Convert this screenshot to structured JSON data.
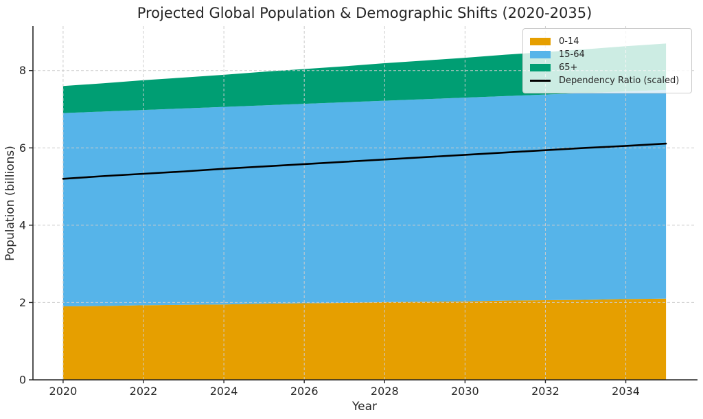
{
  "chart": {
    "title": "Projected Global Population & Demographic Shifts (2020-2035)",
    "xlabel": "Year",
    "ylabel": "Population (billions)"
  },
  "chart_data": {
    "type": "area",
    "stacked": true,
    "title": "Projected Global Population & Demographic Shifts (2020-2035)",
    "xlabel": "Year",
    "ylabel": "Population (billions)",
    "x": [
      2020,
      2021,
      2022,
      2023,
      2024,
      2025,
      2026,
      2027,
      2028,
      2029,
      2030,
      2031,
      2032,
      2033,
      2034,
      2035
    ],
    "series": [
      {
        "name": "0-14",
        "color": "#E69F00",
        "values": [
          1.9,
          1.91,
          1.93,
          1.94,
          1.95,
          1.97,
          1.98,
          1.99,
          2.01,
          2.02,
          2.03,
          2.05,
          2.06,
          2.07,
          2.09,
          2.1
        ]
      },
      {
        "name": "15-64",
        "color": "#56B4E9",
        "values": [
          5.0,
          5.03,
          5.05,
          5.08,
          5.11,
          5.13,
          5.16,
          5.19,
          5.21,
          5.24,
          5.27,
          5.29,
          5.32,
          5.35,
          5.37,
          5.4
        ]
      },
      {
        "name": "65+",
        "color": "#009E73",
        "values": [
          0.7,
          0.73,
          0.77,
          0.8,
          0.83,
          0.87,
          0.9,
          0.93,
          0.97,
          1.0,
          1.03,
          1.07,
          1.1,
          1.13,
          1.17,
          1.2
        ]
      }
    ],
    "line_series": {
      "name": "Dependency Ratio (scaled)",
      "color": "#000000",
      "values": [
        5.2,
        5.27,
        5.33,
        5.39,
        5.46,
        5.52,
        5.58,
        5.64,
        5.7,
        5.76,
        5.82,
        5.88,
        5.94,
        6.0,
        6.05,
        6.11
      ]
    },
    "x_ticks": [
      2020,
      2022,
      2024,
      2026,
      2028,
      2030,
      2032,
      2034
    ],
    "y_ticks": [
      0,
      2,
      4,
      6,
      8
    ],
    "xlim": [
      2019.25,
      2035.75
    ],
    "ylim": [
      0,
      9.15
    ],
    "grid": true,
    "legend_position": "top-right"
  },
  "legend": {
    "entries": [
      {
        "label": "0-14",
        "color": "#E69F00",
        "type": "patch"
      },
      {
        "label": "15-64",
        "color": "#56B4E9",
        "type": "patch"
      },
      {
        "label": "65+",
        "color": "#009E73",
        "type": "patch"
      },
      {
        "label": "Dependency Ratio (scaled)",
        "color": "#000000",
        "type": "line"
      }
    ]
  },
  "colors": {
    "background": "#ffffff",
    "grid": "#cccccc",
    "spine": "#262626",
    "text": "#262626",
    "dependency_line": "#000000"
  }
}
